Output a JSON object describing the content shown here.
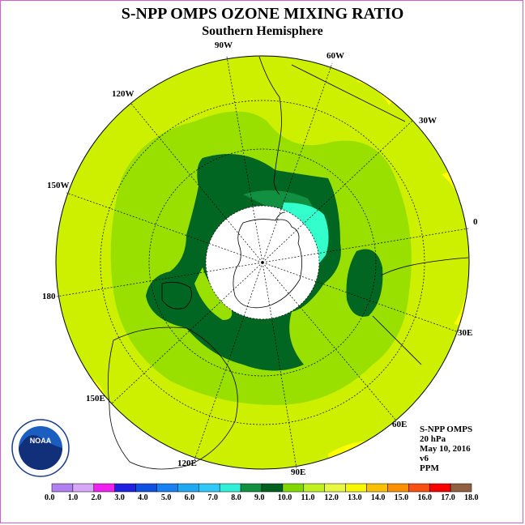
{
  "title": "S-NPP OMPS OZONE MIXING RATIO",
  "subtitle": "Southern Hemisphere",
  "longitude_labels": [
    {
      "id": "lon-90w",
      "text": "90W"
    },
    {
      "id": "lon-60w",
      "text": "60W"
    },
    {
      "id": "lon-120w",
      "text": "120W"
    },
    {
      "id": "lon-30w",
      "text": "30W"
    },
    {
      "id": "lon-150w",
      "text": "150W"
    },
    {
      "id": "lon-0",
      "text": "0"
    },
    {
      "id": "lon-180",
      "text": "180"
    },
    {
      "id": "lon-30e",
      "text": "30E"
    },
    {
      "id": "lon-150e",
      "text": "150E"
    },
    {
      "id": "lon-60e",
      "text": "60E"
    },
    {
      "id": "lon-120e",
      "text": "120E"
    },
    {
      "id": "lon-90e",
      "text": "90E"
    }
  ],
  "info": {
    "instrument": "S-NPP OMPS",
    "level": "20 hPa",
    "date": "May 10, 2016",
    "version": "v6",
    "units": "PPM"
  },
  "logo": {
    "text": "NOAA"
  },
  "colorbar": {
    "ticks": [
      "0.0",
      "1.0",
      "2.0",
      "3.0",
      "4.0",
      "5.0",
      "6.0",
      "7.0",
      "8.0",
      "9.0",
      "10.0",
      "11.0",
      "12.0",
      "13.0",
      "14.0",
      "15.0",
      "16.0",
      "17.0",
      "18.0"
    ],
    "colors": [
      "#b080f0",
      "#d8a8f8",
      "#f020f0",
      "#2020e0",
      "#1050e0",
      "#1880f0",
      "#20a8f0",
      "#30c8f8",
      "#30f0d8",
      "#109040",
      "#006020",
      "#80d800",
      "#c0f020",
      "#e8f840",
      "#f8f800",
      "#f8c000",
      "#f89000",
      "#f85010",
      "#f80000",
      "#906040"
    ]
  },
  "map_colors": {
    "base": "#ccf000",
    "level_11": "#99e000",
    "level_10": "#006622",
    "level_8": "#33ffcc",
    "high": "#ffff00"
  }
}
